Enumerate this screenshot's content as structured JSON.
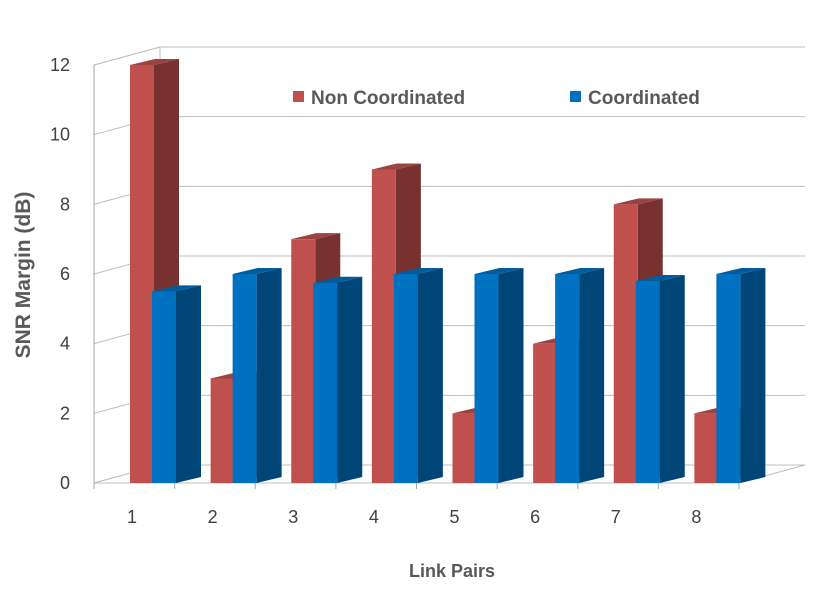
{
  "chart_data": {
    "type": "bar",
    "title": "",
    "xlabel": "Link Pairs",
    "ylabel": "SNR Margin (dB)",
    "categories": [
      "1",
      "2",
      "3",
      "4",
      "5",
      "6",
      "7",
      "8"
    ],
    "series": [
      {
        "name": "Non Coordinated",
        "values": [
          12,
          3,
          7,
          9,
          2,
          4,
          8,
          2
        ],
        "color": "#c0504d"
      },
      {
        "name": "Coordinated",
        "values": [
          5.5,
          6,
          5.75,
          6,
          6,
          6,
          5.8,
          6
        ],
        "color": "#0070c0"
      }
    ],
    "ylim": [
      0,
      12
    ],
    "yticks": [
      0,
      2,
      4,
      6,
      8,
      10,
      12
    ],
    "grid": true,
    "legend_position": "top",
    "style": "3d-clustered-column"
  }
}
